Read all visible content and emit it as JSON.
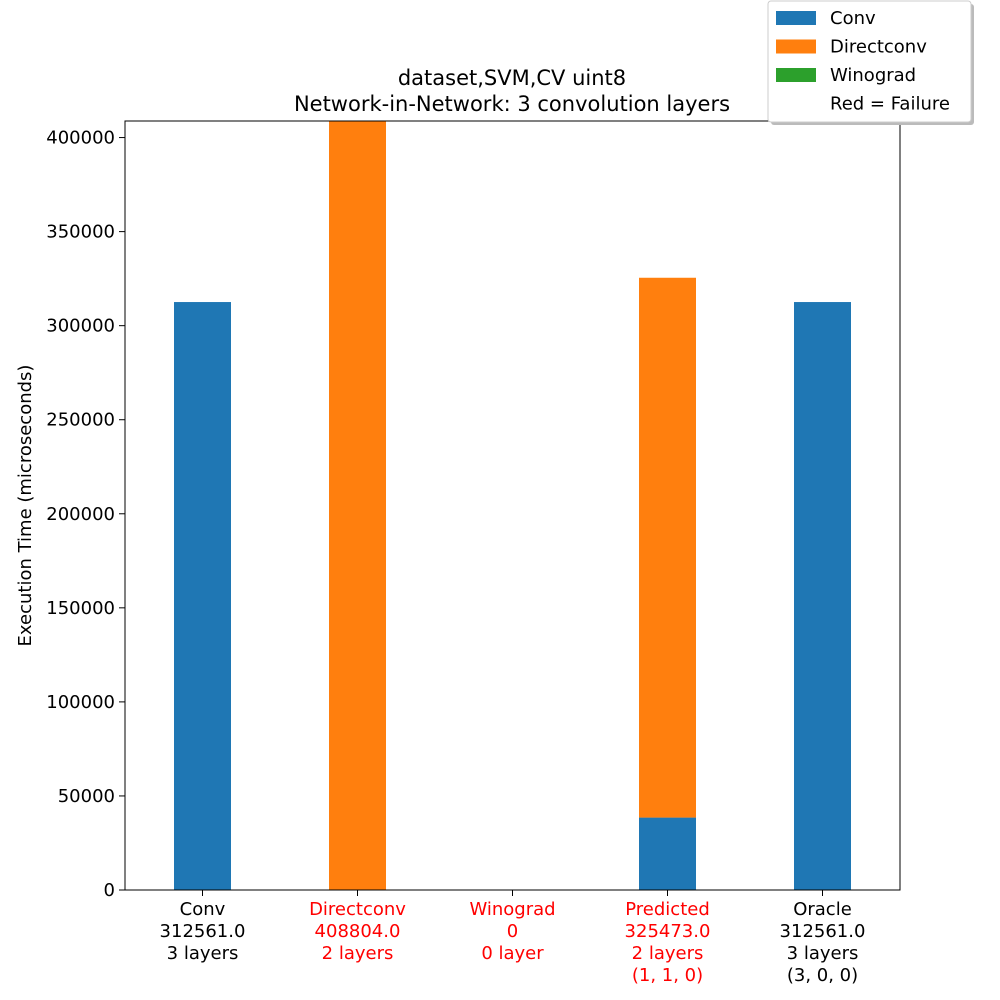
{
  "chart_data": {
    "type": "bar",
    "stacked": true,
    "title": "dataset,SVM,CV uint8",
    "subtitle": "Network-in-Network: 3 convolution layers",
    "xlabel": "",
    "ylabel": "Execution Time (microseconds)",
    "ylim": [
      0,
      408804
    ],
    "yticks": [
      0,
      50000,
      100000,
      150000,
      200000,
      250000,
      300000,
      350000,
      400000
    ],
    "grid": false,
    "legend_position": "top-right",
    "legend_note": "Red = Failure",
    "categories": [
      {
        "lines": [
          "Conv",
          "312561.0",
          "3 layers"
        ],
        "failure": false
      },
      {
        "lines": [
          "Directconv",
          "408804.0",
          "2 layers"
        ],
        "failure": true
      },
      {
        "lines": [
          "Winograd",
          "0",
          "0 layer"
        ],
        "failure": true
      },
      {
        "lines": [
          "Predicted",
          "325473.0",
          "2 layers",
          "(1, 1, 0)"
        ],
        "failure": true
      },
      {
        "lines": [
          "Oracle",
          "312561.0",
          "3 layers",
          "(3, 0, 0)"
        ],
        "failure": false
      }
    ],
    "series": [
      {
        "name": "Conv",
        "color": "#1f77b4",
        "values": [
          312561,
          0,
          0,
          38500,
          312561
        ]
      },
      {
        "name": "Directconv",
        "color": "#ff7f0e",
        "values": [
          0,
          408804,
          0,
          286973,
          0
        ]
      },
      {
        "name": "Winograd",
        "color": "#2ca02c",
        "values": [
          0,
          0,
          0,
          0,
          0
        ]
      }
    ]
  }
}
